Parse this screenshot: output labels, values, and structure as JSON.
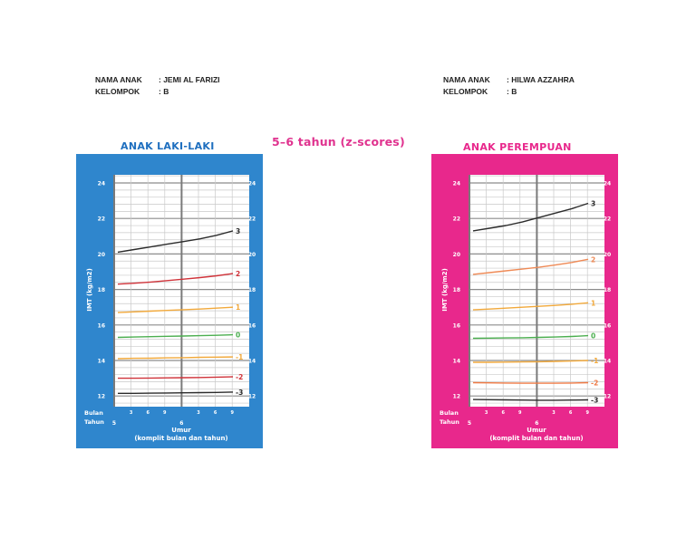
{
  "students": [
    {
      "name_label": "NAMA ANAK",
      "name_value": ": JEMI AL FARIZI",
      "group_label": "KELOMPOK",
      "group_value": ": B"
    },
    {
      "name_label": "NAMA ANAK",
      "name_value": ": HILWA AZZAHRA",
      "group_label": "KELOMPOK",
      "group_value": ": B"
    }
  ],
  "center_title": "5–6 tahun (z-scores)",
  "chart_data": [
    {
      "type": "line",
      "title": "ANAK LAKI-LAKI",
      "panel_color": "#2f86cd",
      "title_color": "#1f6fbf",
      "xlabel": "Umur",
      "xlabel_sub": "(komplit bulan dan tahun)",
      "ylabel": "IMT (kg/m2)",
      "row_labels": [
        "Bulan",
        "Tahun"
      ],
      "x_month_ticks": [
        "3",
        "6",
        "9",
        "3",
        "6",
        "9"
      ],
      "x_year_ticks": [
        "5",
        "6"
      ],
      "y_ticks": [
        12,
        14,
        16,
        18,
        20,
        22,
        24
      ],
      "ylim": [
        11.4,
        24.5
      ],
      "x": [
        0,
        3,
        6,
        9,
        12,
        15,
        18,
        21
      ],
      "series": [
        {
          "name": "3",
          "color": "#2b2b2b",
          "values": [
            20.1,
            20.25,
            20.4,
            20.55,
            20.7,
            20.85,
            21.05,
            21.3
          ]
        },
        {
          "name": "2",
          "color": "#d0333a",
          "values": [
            18.3,
            18.35,
            18.42,
            18.5,
            18.58,
            18.67,
            18.77,
            18.9
          ]
        },
        {
          "name": "1",
          "color": "#f2a93b",
          "values": [
            16.7,
            16.74,
            16.78,
            16.82,
            16.86,
            16.9,
            16.95,
            17.0
          ]
        },
        {
          "name": "0",
          "color": "#4caf50",
          "values": [
            15.3,
            15.32,
            15.34,
            15.36,
            15.38,
            15.4,
            15.42,
            15.45
          ]
        },
        {
          "name": "-1",
          "color": "#f2a93b",
          "values": [
            14.1,
            14.12,
            14.13,
            14.15,
            14.16,
            14.18,
            14.19,
            14.2
          ]
        },
        {
          "name": "-2",
          "color": "#d0333a",
          "values": [
            13.0,
            13.0,
            13.01,
            13.02,
            13.03,
            13.04,
            13.06,
            13.08
          ]
        },
        {
          "name": "-3",
          "color": "#2b2b2b",
          "values": [
            12.15,
            12.15,
            12.16,
            12.17,
            12.18,
            12.19,
            12.2,
            12.22
          ]
        }
      ]
    },
    {
      "type": "line",
      "title": "ANAK PEREMPUAN",
      "panel_color": "#e8288c",
      "title_color": "#e8288c",
      "xlabel": "Umur",
      "xlabel_sub": "(komplit bulan dan tahun)",
      "ylabel": "IMT (kg/m2)",
      "row_labels": [
        "Bulan",
        "Tahun"
      ],
      "x_month_ticks": [
        "3",
        "6",
        "9",
        "3",
        "6",
        "9"
      ],
      "x_year_ticks": [
        "5",
        "6"
      ],
      "y_ticks": [
        12,
        14,
        16,
        18,
        20,
        22,
        24
      ],
      "ylim": [
        11.4,
        24.5
      ],
      "x": [
        0,
        3,
        6,
        9,
        12,
        15,
        18,
        21
      ],
      "series": [
        {
          "name": "3",
          "color": "#2b2b2b",
          "values": [
            21.3,
            21.45,
            21.6,
            21.8,
            22.05,
            22.3,
            22.55,
            22.85
          ]
        },
        {
          "name": "2",
          "color": "#ef8a56",
          "values": [
            18.85,
            18.95,
            19.05,
            19.15,
            19.25,
            19.38,
            19.52,
            19.7
          ]
        },
        {
          "name": "1",
          "color": "#f2a93b",
          "values": [
            16.85,
            16.9,
            16.95,
            17.0,
            17.05,
            17.1,
            17.17,
            17.25
          ]
        },
        {
          "name": "0",
          "color": "#4caf50",
          "values": [
            15.25,
            15.26,
            15.27,
            15.28,
            15.3,
            15.32,
            15.35,
            15.4
          ]
        },
        {
          "name": "-1",
          "color": "#f2a93b",
          "values": [
            13.9,
            13.9,
            13.91,
            13.92,
            13.93,
            13.95,
            13.97,
            14.0
          ]
        },
        {
          "name": "-2",
          "color": "#ef7a45",
          "values": [
            12.75,
            12.74,
            12.73,
            12.72,
            12.72,
            12.72,
            12.73,
            12.75
          ]
        },
        {
          "name": "-3",
          "color": "#2b2b2b",
          "values": [
            11.8,
            11.79,
            11.78,
            11.77,
            11.76,
            11.76,
            11.77,
            11.78
          ]
        }
      ]
    }
  ]
}
